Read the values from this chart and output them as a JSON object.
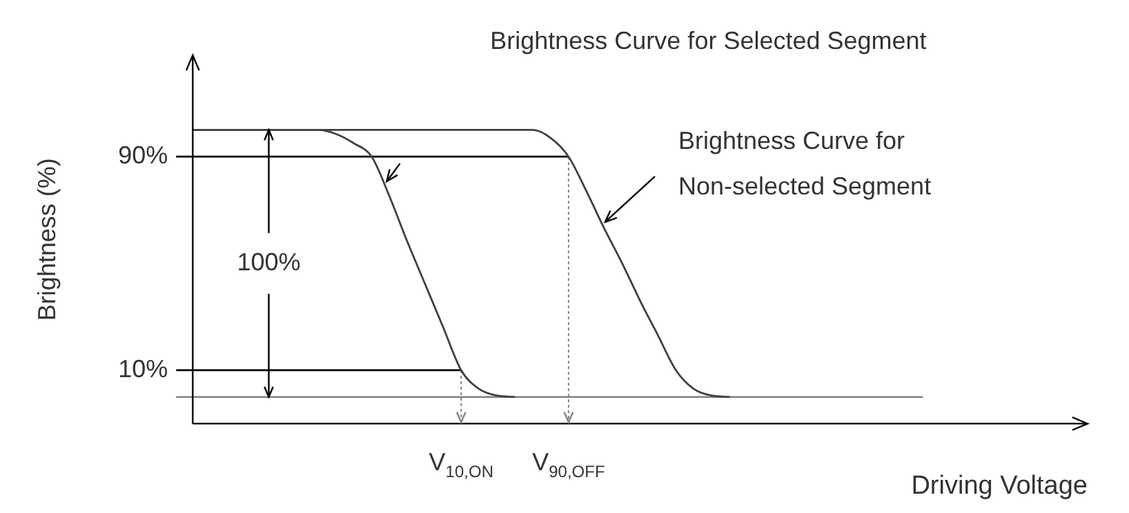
{
  "chart_data": {
    "type": "line",
    "xlabel": "Driving Voltage",
    "ylabel": "Brightness (%)",
    "ylim": [
      -10,
      128
    ],
    "categories": [
      null,
      null,
      null,
      null,
      null,
      null,
      null,
      null,
      null,
      null,
      null,
      null,
      null,
      null,
      null,
      "V$_{10,ON}$",
      null,
      null,
      null,
      null,
      null,
      "V$_{90,OFF}$",
      null,
      null,
      null,
      null,
      null,
      null,
      null,
      null,
      null,
      null,
      null,
      null,
      null,
      null,
      null,
      null,
      null,
      null,
      null,
      null,
      null,
      null,
      null,
      null,
      null,
      null,
      null,
      null,
      null
    ],
    "yticks": [
      {
        "value": 10,
        "label": "10%"
      },
      {
        "value": 90,
        "label": "90%"
      }
    ],
    "grid": false,
    "legend": false,
    "marker": "none",
    "series": [
      {
        "color": "#404040",
        "values": [
          100,
          100,
          100,
          100,
          100,
          100,
          100,
          100,
          98.5,
          95,
          90,
          75,
          58,
          42,
          26,
          10,
          3,
          0.5,
          0,
          null,
          null,
          null,
          null,
          null,
          null,
          null,
          null,
          null,
          null,
          null,
          null,
          null,
          null,
          null,
          null,
          null,
          null,
          null,
          null,
          null,
          null,
          null,
          null,
          null,
          null,
          null,
          null,
          null,
          null,
          null,
          null
        ]
      },
      {
        "color": "#404040",
        "values": [
          100,
          100,
          100,
          100,
          100,
          100,
          100,
          100,
          100,
          100,
          100,
          100,
          100,
          100,
          100,
          100,
          100,
          100,
          100,
          100,
          97,
          90,
          77,
          63,
          50,
          36,
          23,
          10,
          3,
          0.5,
          0,
          null,
          null,
          null,
          null,
          null,
          null,
          null,
          null,
          null,
          null,
          null,
          null,
          null,
          null,
          null,
          null,
          null,
          null,
          null,
          null
        ]
      }
    ],
    "ref_lines": [
      {
        "axis": "y",
        "value": 90,
        "color": "#000000"
      },
      {
        "axis": "y",
        "value": 10,
        "color": "#000000"
      },
      {
        "axis": "y",
        "value": 0,
        "color": "#808080"
      },
      {
        "axis": "x",
        "value": "V$_{90,OFF}$",
        "color": "#808080",
        "line_style": "dotted"
      },
      {
        "axis": "x",
        "value": "V$_{10,ON}$",
        "color": "#808080",
        "line_style": "dotted"
      }
    ],
    "annotations": [
      "Brightness Curve for Selected Segment",
      "Brightness Curve for\nNon-selected Segment",
      {
        "text": "100%",
        "y": 100
      }
    ]
  }
}
